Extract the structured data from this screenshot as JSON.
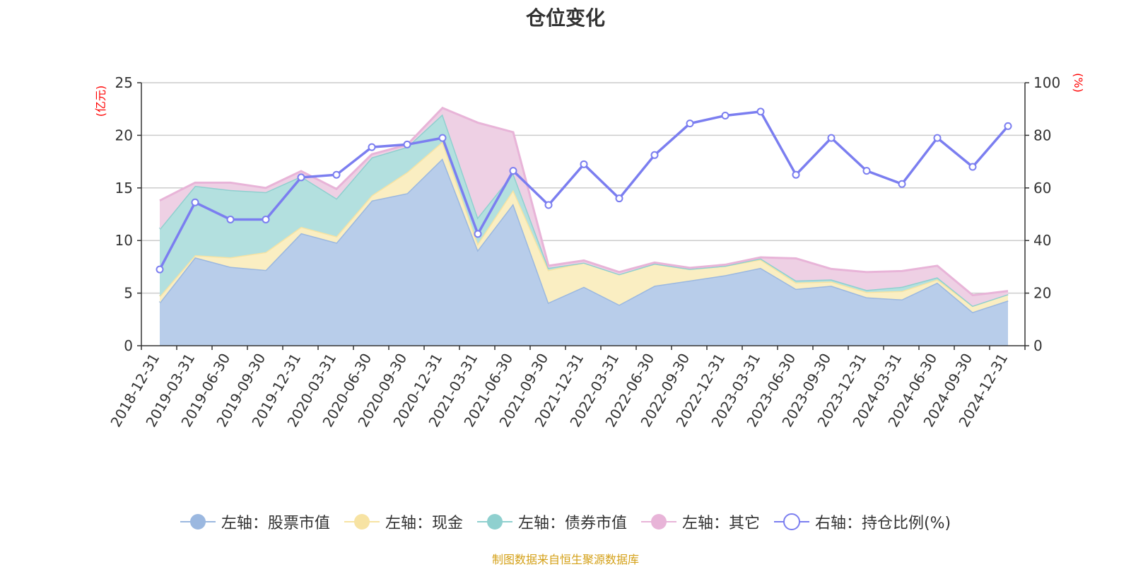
{
  "chart_data": {
    "type": "area",
    "title": "仓位变化",
    "left_unit": "(亿元)",
    "right_unit": "(%)",
    "left_ylim": [
      0,
      25
    ],
    "left_ticks": [
      0,
      5,
      10,
      15,
      20,
      25
    ],
    "right_ylim": [
      0,
      100
    ],
    "right_ticks": [
      0,
      20,
      40,
      60,
      80,
      100
    ],
    "categories": [
      "2018-12-31",
      "2019-03-31",
      "2019-06-30",
      "2019-09-30",
      "2019-12-31",
      "2020-03-31",
      "2020-06-30",
      "2020-09-30",
      "2020-12-31",
      "2021-03-31",
      "2021-06-30",
      "2021-09-30",
      "2021-12-31",
      "2022-03-31",
      "2022-06-30",
      "2022-09-30",
      "2022-12-31",
      "2023-03-31",
      "2023-06-30",
      "2023-09-30",
      "2023-12-31",
      "2024-03-31",
      "2024-06-30",
      "2024-09-30",
      "2024-12-31"
    ],
    "stacked_series": [
      {
        "name": "左轴：股票市值",
        "color": "#9bb8e0",
        "fill": "#b8cdea",
        "values": [
          4.1,
          8.4,
          7.5,
          7.2,
          10.7,
          9.8,
          13.8,
          14.5,
          17.8,
          9.1,
          13.5,
          4.1,
          5.6,
          3.9,
          5.7,
          6.2,
          6.7,
          7.4,
          5.4,
          5.7,
          4.6,
          4.4,
          6.0,
          3.2,
          4.3
        ]
      },
      {
        "name": "左轴：现金",
        "color": "#f7e3a3",
        "fill": "#faeec2",
        "values": [
          0.6,
          0.2,
          0.9,
          1.7,
          0.6,
          0.6,
          0.5,
          2.0,
          1.6,
          0.6,
          1.3,
          3.1,
          2.3,
          2.9,
          2.1,
          1.1,
          0.9,
          0.8,
          0.6,
          0.4,
          0.5,
          0.8,
          0.3,
          0.6,
          0.6
        ]
      },
      {
        "name": "左轴：债券市值",
        "color": "#8fd0cf",
        "fill": "#b3e0df",
        "values": [
          6.4,
          6.6,
          6.4,
          5.7,
          4.8,
          3.6,
          3.6,
          2.4,
          2.6,
          2.5,
          1.6,
          0.2,
          0.0,
          0.0,
          0.0,
          0.0,
          0.0,
          0.1,
          0.2,
          0.2,
          0.2,
          0.4,
          0.2,
          0.0,
          0.0
        ]
      },
      {
        "name": "左轴：其它",
        "color": "#e8b4d8",
        "fill": "#eed0e4",
        "values": [
          2.7,
          0.3,
          0.7,
          0.4,
          0.5,
          0.9,
          0.3,
          0.2,
          0.6,
          9.0,
          3.9,
          0.2,
          0.2,
          0.2,
          0.1,
          0.1,
          0.1,
          0.1,
          2.1,
          1.0,
          1.7,
          1.5,
          1.1,
          1.0,
          0.3
        ]
      }
    ],
    "line_series": {
      "name": "右轴：持仓比例(%)",
      "color": "#7b7ef0",
      "values": [
        29,
        54.5,
        48,
        48,
        64,
        65,
        75.5,
        76.5,
        79,
        42.5,
        66.5,
        53.5,
        69,
        56,
        72.5,
        84.5,
        87.5,
        89,
        65,
        79,
        66.5,
        61.5,
        79,
        68,
        83.5
      ]
    }
  },
  "footer": "制图数据来自恒生聚源数据库"
}
